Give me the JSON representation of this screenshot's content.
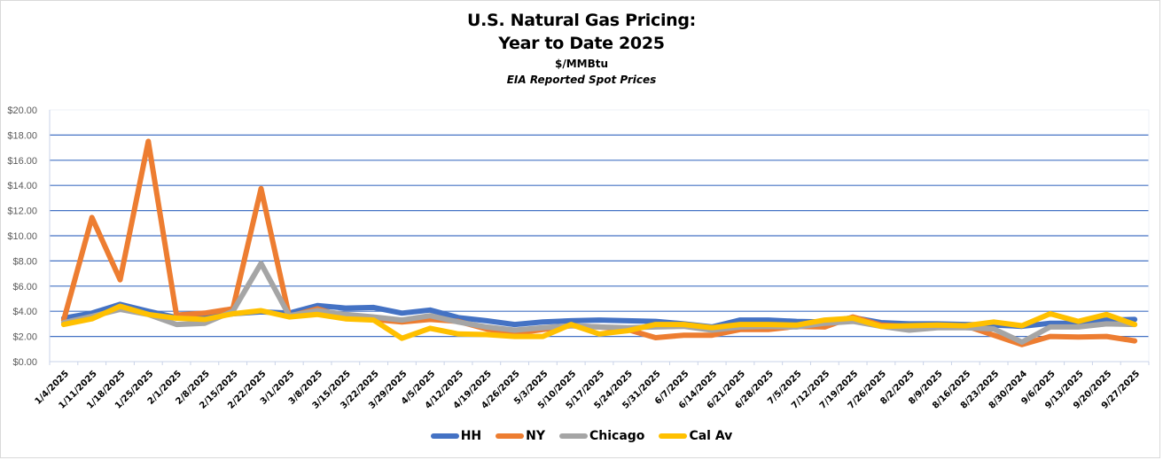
{
  "chart_data": {
    "type": "line",
    "title": "U.S. Natural Gas Pricing:",
    "title_line2": "Year to Date 2025",
    "subtitle": "$/MMBtu",
    "subtitle2": "EIA Reported Spot Prices",
    "xlabel": "",
    "ylabel": "",
    "ylim": [
      0,
      20
    ],
    "ytick_step": 2,
    "ytick_labels": [
      "$0.00",
      "$2.00",
      "$4.00",
      "$6.00",
      "$8.00",
      "$10.00",
      "$12.00",
      "$14.00",
      "$16.00",
      "$18.00",
      "$20.00"
    ],
    "grid": true,
    "legend_position": "bottom",
    "categories": [
      "1/4/2025",
      "1/11/2025",
      "1/18/2025",
      "1/25/2025",
      "2/1/2025",
      "2/8/2025",
      "2/15/2025",
      "2/22/2025",
      "3/1/2025",
      "3/8/2025",
      "3/15/2025",
      "3/22/2025",
      "3/29/2025",
      "4/5/2025",
      "4/12/2025",
      "4/19/2025",
      "4/26/2025",
      "5/3/2025",
      "5/10/2025",
      "5/17/2025",
      "5/24/2025",
      "5/31/2025",
      "6/7/2025",
      "6/14/2025",
      "6/21/2025",
      "6/28/2025",
      "7/5/2025",
      "7/12/2025",
      "7/19/2025",
      "7/26/2025",
      "8/2/2025",
      "8/9/2025",
      "8/16/2025",
      "8/23/2025",
      "8/30/2024",
      "9/6/2025",
      "9/13/2025",
      "9/20/2025",
      "9/27/2025"
    ],
    "series": [
      {
        "name": "HH",
        "color": "#4472c4",
        "values": [
          3.45,
          3.85,
          4.55,
          4.0,
          3.5,
          3.45,
          3.8,
          3.95,
          3.85,
          4.45,
          4.25,
          4.3,
          3.85,
          4.1,
          3.5,
          3.25,
          2.95,
          3.15,
          3.25,
          3.3,
          3.25,
          3.2,
          3.0,
          2.75,
          3.3,
          3.3,
          3.2,
          3.15,
          3.5,
          3.1,
          3.0,
          3.0,
          2.95,
          2.9,
          2.8,
          3.05,
          3.05,
          3.3,
          3.35
        ]
      },
      {
        "name": "NY",
        "color": "#ed7d31",
        "values": [
          3.3,
          11.45,
          6.5,
          17.5,
          3.7,
          3.85,
          4.2,
          13.75,
          3.6,
          4.2,
          3.55,
          3.35,
          3.15,
          3.35,
          3.2,
          2.6,
          2.25,
          2.55,
          2.85,
          2.75,
          2.55,
          1.9,
          2.1,
          2.1,
          2.55,
          2.55,
          2.8,
          2.75,
          3.55,
          2.9,
          2.8,
          2.75,
          2.85,
          2.1,
          1.35,
          2.0,
          1.95,
          2.0,
          1.65
        ]
      },
      {
        "name": "Chicago",
        "color": "#a5a5a5",
        "values": [
          3.1,
          3.6,
          4.15,
          3.75,
          2.95,
          3.05,
          4.0,
          7.8,
          3.65,
          4.05,
          3.75,
          3.55,
          3.3,
          3.65,
          3.15,
          2.75,
          2.5,
          2.7,
          2.85,
          2.75,
          2.7,
          2.75,
          2.8,
          2.5,
          2.75,
          2.8,
          2.75,
          3.05,
          3.2,
          2.8,
          2.5,
          2.7,
          2.7,
          2.6,
          1.55,
          2.75,
          2.75,
          3.0,
          2.95
        ]
      },
      {
        "name": "Cal Av",
        "color": "#ffc000",
        "values": [
          2.95,
          3.4,
          4.4,
          3.75,
          3.45,
          3.35,
          3.8,
          4.05,
          3.55,
          3.75,
          3.4,
          3.3,
          1.85,
          2.65,
          2.2,
          2.15,
          2.0,
          2.0,
          2.95,
          2.2,
          2.45,
          2.95,
          2.95,
          2.7,
          2.95,
          2.95,
          2.9,
          3.3,
          3.45,
          2.8,
          2.85,
          2.9,
          2.85,
          3.15,
          2.85,
          3.8,
          3.2,
          3.75,
          2.95
        ]
      }
    ]
  },
  "colors": {
    "gridline": "#4472c4",
    "axis": "#c9d3e8",
    "tick_label": "#595959"
  }
}
